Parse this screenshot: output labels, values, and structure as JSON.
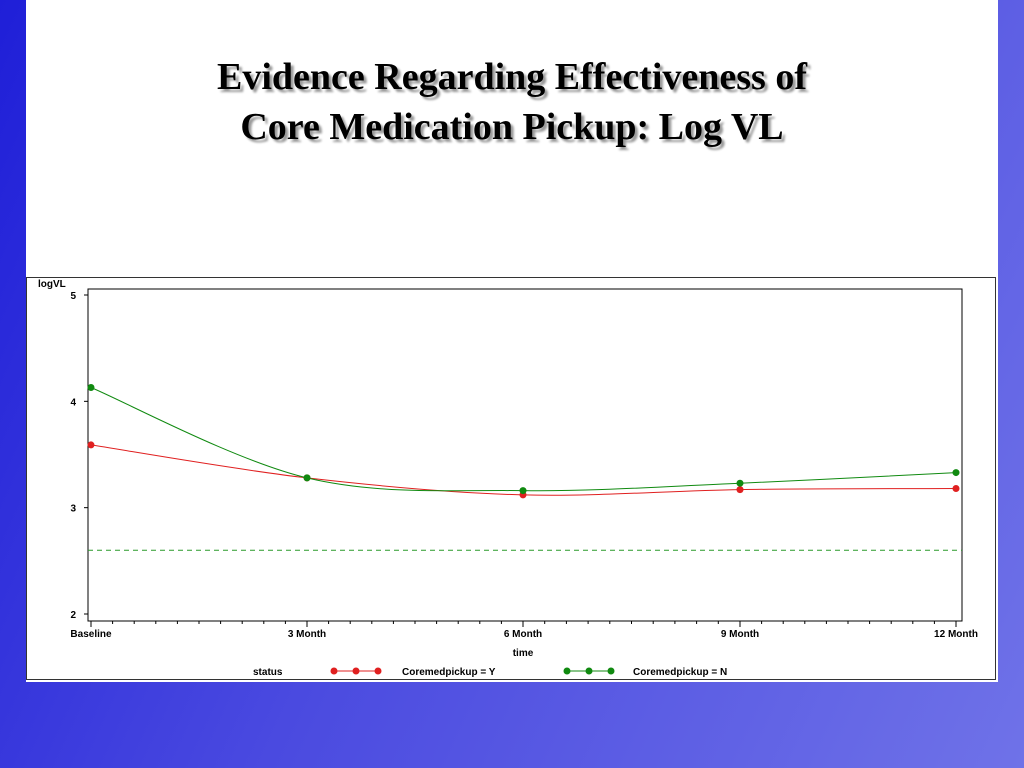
{
  "slide": {
    "title_line1": "Evidence Regarding Effectiveness of",
    "title_line2": "Core Medication Pickup: Log VL"
  },
  "chart_data": {
    "type": "line",
    "title": "",
    "xlabel": "time",
    "ylabel": "logVL",
    "categories": [
      "Baseline",
      "3  Month",
      "6  Month",
      "9  Month",
      "12  Month"
    ],
    "ylim": [
      2,
      5
    ],
    "yticks": [
      2,
      3,
      4,
      5
    ],
    "grid": false,
    "legend": {
      "title": "status",
      "placement": "bottom"
    },
    "series": [
      {
        "name": "Coremedpickup = Y",
        "color": "#e02020",
        "values": [
          3.59,
          3.28,
          3.12,
          3.17,
          3.18
        ]
      },
      {
        "name": "Coremedpickup = N",
        "color": "#108a10",
        "values": [
          4.13,
          3.28,
          3.16,
          3.23,
          3.33
        ]
      }
    ],
    "reference_line": {
      "y": 2.6,
      "style": "dashed",
      "color": "#2a9a2a"
    }
  }
}
